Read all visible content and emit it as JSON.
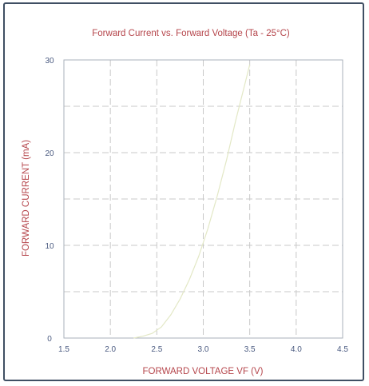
{
  "chart_data": {
    "type": "line",
    "title": "Forward Current vs. Forward Voltage (Ta - 25°C)",
    "xlabel": "FORWARD VOLTAGE VF (V)",
    "ylabel": "FORWARD CURRENT (mA)",
    "xlim": [
      1.5,
      4.5
    ],
    "ylim": [
      0,
      30
    ],
    "x_ticks": [
      "1.5",
      "2.0",
      "2.5",
      "3.0",
      "3.5",
      "4.0",
      "4.5"
    ],
    "y_ticks": [
      "0",
      "10",
      "20",
      "30"
    ],
    "grid": true,
    "series": [
      {
        "color": "#e3e8c6",
        "x": [
          2.25,
          2.35,
          2.45,
          2.55,
          2.65,
          2.75,
          2.85,
          2.95,
          3.05,
          3.15,
          3.25,
          3.35,
          3.45,
          3.5
        ],
        "y": [
          0,
          0.2,
          0.5,
          1.2,
          2.5,
          4.2,
          6.3,
          8.8,
          11.8,
          15.3,
          19.2,
          23.5,
          27.5,
          29.5
        ]
      }
    ]
  },
  "colors": {
    "frame": "#3f4f63",
    "text_accent": "#b5454b",
    "tick_text": "#4a5a80",
    "grid": "#c8c8c8",
    "curve": "#e3e8c6"
  }
}
